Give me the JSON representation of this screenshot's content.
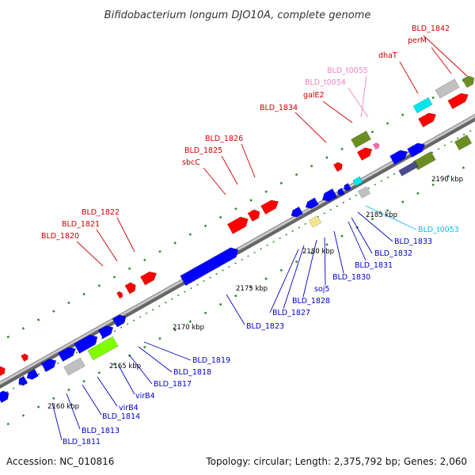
{
  "title": "Bifidobacterium longum DJO10A, complete genome",
  "accession": "Accession: NC_010816",
  "summary": "Topology: circular; Length: 2,375,792 bp; Genes: 2,060",
  "colors": {
    "backbone": "#9a9a9a",
    "gene_red": "#ff0000",
    "gene_blue": "#0000ff",
    "gene_olive": "#6b8e23",
    "gene_gray": "#c0c0c0",
    "gene_cyan": "#00e5ee",
    "gene_pink": "#ff69b4",
    "gene_green": "#7fff00",
    "gene_khaki": "#f0e68c",
    "gene_navy": "#4b4b8c",
    "tick_green": "#228b22",
    "label_red": "#cc0000",
    "label_pink": "#ee82c8",
    "label_blue": "#0000cc",
    "label_cyan": "#00bfff"
  },
  "kbp_ticks": [
    "2160 kbp",
    "2165 kbp",
    "2170 kbp",
    "2175 kbp",
    "2180 kbp",
    "2185 kbp",
    "2190 kbp"
  ],
  "labels": {
    "bld_1842": "BLD_1842",
    "perm": "perM",
    "dhat": "dhaT",
    "bld_t0055": "BLD_t0055",
    "bld_t0054": "BLD_t0054",
    "gale2": "galE2",
    "bld_1834": "BLD_1834",
    "bld_1826": "BLD_1826",
    "bld_1825": "BLD_1825",
    "sbcc": "sbcC",
    "bld_1822": "BLD_1822",
    "bld_1821": "BLD_1821",
    "bld_1820": "BLD_1820",
    "bld_t0053": "BLD_t0053",
    "bld_1833": "BLD_1833",
    "bld_1832": "BLD_1832",
    "bld_1831": "BLD_1831",
    "bld_1830": "BLD_1830",
    "soj5": "soj5",
    "bld_1828": "BLD_1828",
    "bld_1827": "BLD_1827",
    "bld_1823": "BLD_1823",
    "bld_1819": "BLD_1819",
    "bld_1818": "BLD_1818",
    "bld_1817": "BLD_1817",
    "virb4_a": "virB4",
    "virb4_b": "virB4",
    "bld_1814": "BLD_1814",
    "bld_1813": "BLD_1813",
    "bld_1811": "BLD_1811"
  }
}
